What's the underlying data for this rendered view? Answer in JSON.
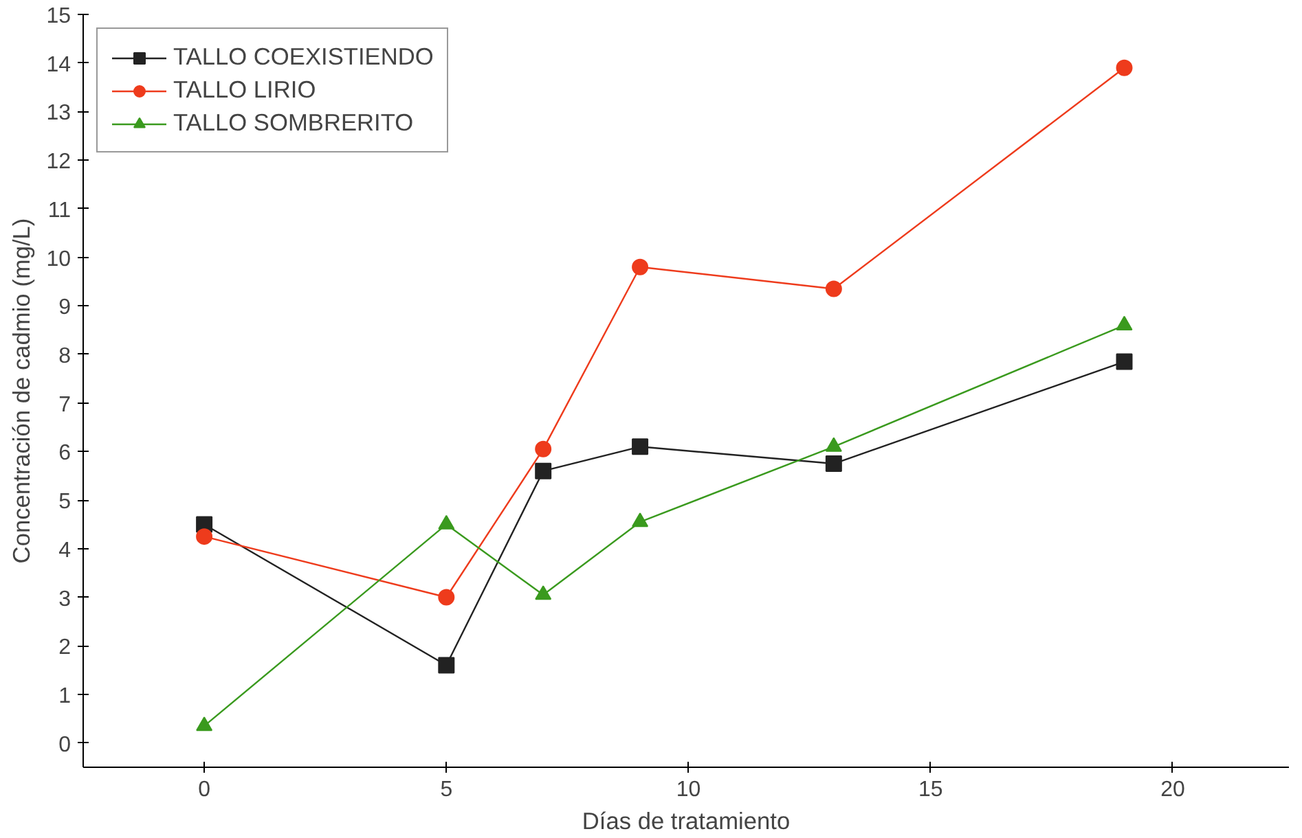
{
  "chart_data": {
    "type": "line",
    "xlabel": "Días de tratamiento",
    "ylabel": "Concentración de cadmio (mg/L)",
    "x": [
      0,
      5,
      7,
      9,
      13,
      19
    ],
    "series": [
      {
        "name": "TALLO COEXISTIENDO",
        "color": "#222222",
        "marker": "square",
        "values": [
          4.5,
          1.6,
          5.6,
          6.1,
          5.75,
          7.85
        ]
      },
      {
        "name": "TALLO LIRIO",
        "color": "#ee3b1c",
        "marker": "circle",
        "values": [
          4.25,
          3.0,
          6.05,
          9.8,
          9.35,
          13.9
        ]
      },
      {
        "name": "TALLO SOMBRERITO",
        "color": "#3a9a1e",
        "marker": "triangle",
        "values": [
          0.35,
          4.5,
          3.05,
          4.55,
          6.1,
          8.6
        ]
      }
    ],
    "xlim": [
      -2.5,
      22.4
    ],
    "ylim": [
      -0.5,
      15
    ],
    "xticks": [
      0,
      5,
      10,
      15,
      20
    ],
    "yticks": [
      0,
      1,
      2,
      3,
      4,
      5,
      6,
      7,
      8,
      9,
      10,
      11,
      12,
      13,
      14,
      15
    ],
    "grid": false,
    "legend": "top left",
    "line_style": "solid"
  }
}
